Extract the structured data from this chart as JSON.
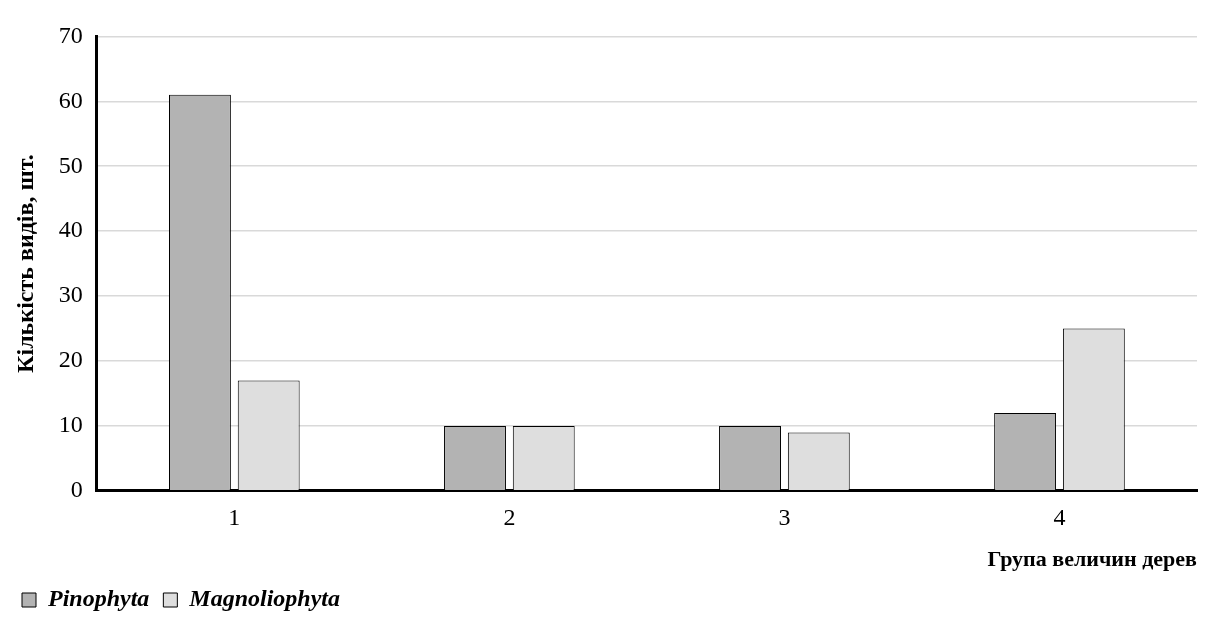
{
  "chart_data": {
    "type": "bar",
    "categories": [
      "1",
      "2",
      "3",
      "4"
    ],
    "xlabel": "Група величин дерев",
    "ylabel": "Кількість видів, шт.",
    "series": [
      {
        "name": "Pinophyta",
        "color": "#b3b3b3",
        "values": [
          61,
          10,
          10,
          12
        ]
      },
      {
        "name": "Magnoliophyta",
        "color": "#dedede",
        "values": [
          17,
          10,
          9,
          25
        ]
      }
    ],
    "ylim": [
      0,
      70
    ],
    "yticks": [
      0,
      10,
      20,
      30,
      40,
      50,
      60,
      70
    ],
    "grid": "y",
    "legend": "bottom"
  }
}
